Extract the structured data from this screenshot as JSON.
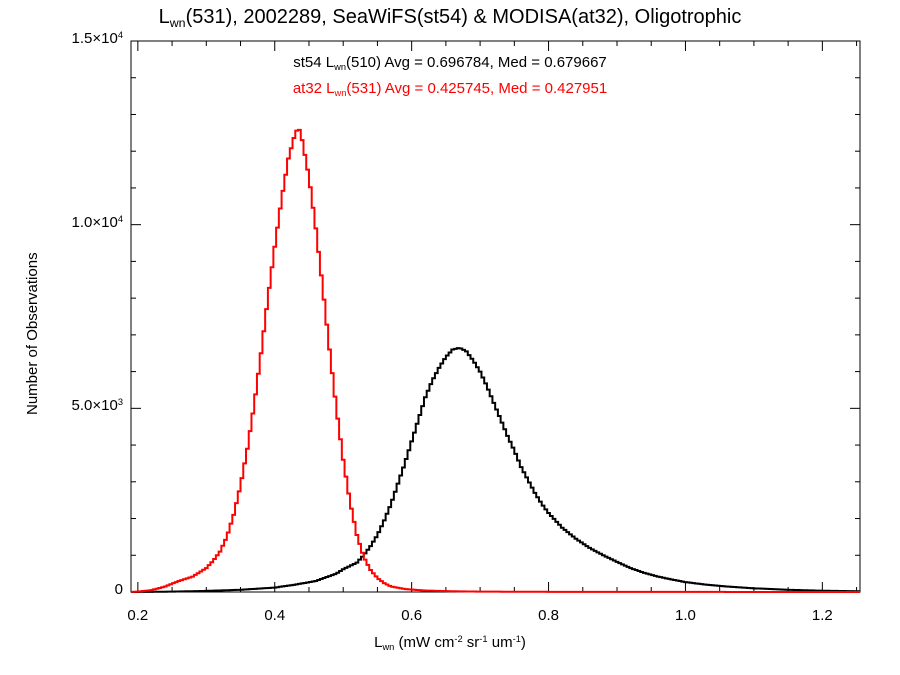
{
  "chart_data": {
    "type": "line",
    "title_parts": {
      "L": "L",
      "wn": "wn",
      "rest": "(531), 2002289, SeaWiFS(st54) & MODISA(at32), Oligotrophic"
    },
    "stats": [
      {
        "series": "st54",
        "prefix": "st54 L",
        "sub": "wn",
        "suffix": "(510) Avg = 0.696784, Med = 0.679667",
        "color": "#000000"
      },
      {
        "series": "at32",
        "prefix": "at32 L",
        "sub": "wn",
        "suffix": "(531) Avg = 0.425745, Med = 0.427951",
        "color": "#ff0000"
      }
    ],
    "xlabel_parts": {
      "L": "L",
      "wn": "wn",
      "a": " (mW cm",
      "e1": "-2",
      "b": " sr",
      "e2": "-1",
      "c": " um",
      "e3": "-1",
      "d": ")"
    },
    "ylabel": "Number of Observations",
    "xlim": [
      0.19,
      1.255
    ],
    "ylim": [
      0,
      15000
    ],
    "x_ticks": [
      0.2,
      0.4,
      0.6,
      0.8,
      1.0,
      1.2
    ],
    "x_tick_labels": [
      "0.2",
      "0.4",
      "0.6",
      "0.8",
      "1.0",
      "1.2"
    ],
    "y_ticks": [
      {
        "value": 0,
        "mantissa": "0",
        "exp": ""
      },
      {
        "value": 5000,
        "mantissa": "5.0×10",
        "exp": "3"
      },
      {
        "value": 10000,
        "mantissa": "1.0×10",
        "exp": "4"
      },
      {
        "value": 15000,
        "mantissa": "1.5×10",
        "exp": "4"
      }
    ],
    "series": [
      {
        "name": "st54",
        "color": "#000000",
        "points": [
          [
            0.19,
            0
          ],
          [
            0.25,
            10
          ],
          [
            0.3,
            30
          ],
          [
            0.35,
            60
          ],
          [
            0.4,
            120
          ],
          [
            0.43,
            200
          ],
          [
            0.46,
            300
          ],
          [
            0.49,
            500
          ],
          [
            0.5,
            620
          ],
          [
            0.52,
            800
          ],
          [
            0.53,
            1000
          ],
          [
            0.54,
            1250
          ],
          [
            0.55,
            1550
          ],
          [
            0.56,
            1950
          ],
          [
            0.57,
            2400
          ],
          [
            0.58,
            2950
          ],
          [
            0.59,
            3500
          ],
          [
            0.6,
            4100
          ],
          [
            0.61,
            4700
          ],
          [
            0.62,
            5300
          ],
          [
            0.63,
            5750
          ],
          [
            0.64,
            6100
          ],
          [
            0.65,
            6400
          ],
          [
            0.66,
            6600
          ],
          [
            0.67,
            6650
          ],
          [
            0.68,
            6550
          ],
          [
            0.69,
            6300
          ],
          [
            0.7,
            6000
          ],
          [
            0.71,
            5600
          ],
          [
            0.72,
            5150
          ],
          [
            0.73,
            4700
          ],
          [
            0.74,
            4250
          ],
          [
            0.75,
            3850
          ],
          [
            0.76,
            3400
          ],
          [
            0.77,
            3050
          ],
          [
            0.78,
            2700
          ],
          [
            0.79,
            2400
          ],
          [
            0.8,
            2150
          ],
          [
            0.82,
            1750
          ],
          [
            0.84,
            1450
          ],
          [
            0.86,
            1200
          ],
          [
            0.88,
            1000
          ],
          [
            0.9,
            820
          ],
          [
            0.92,
            650
          ],
          [
            0.94,
            520
          ],
          [
            0.96,
            420
          ],
          [
            0.98,
            340
          ],
          [
            1.0,
            270
          ],
          [
            1.03,
            200
          ],
          [
            1.06,
            150
          ],
          [
            1.1,
            100
          ],
          [
            1.15,
            60
          ],
          [
            1.2,
            35
          ],
          [
            1.255,
            20
          ]
        ]
      },
      {
        "name": "at32",
        "color": "#ff0000",
        "points": [
          [
            0.19,
            0
          ],
          [
            0.2,
            10
          ],
          [
            0.22,
            50
          ],
          [
            0.24,
            150
          ],
          [
            0.26,
            300
          ],
          [
            0.28,
            420
          ],
          [
            0.3,
            650
          ],
          [
            0.31,
            850
          ],
          [
            0.32,
            1100
          ],
          [
            0.33,
            1500
          ],
          [
            0.34,
            2100
          ],
          [
            0.35,
            2900
          ],
          [
            0.36,
            3900
          ],
          [
            0.37,
            5100
          ],
          [
            0.38,
            6500
          ],
          [
            0.39,
            8000
          ],
          [
            0.4,
            9400
          ],
          [
            0.41,
            10700
          ],
          [
            0.42,
            11800
          ],
          [
            0.43,
            12500
          ],
          [
            0.435,
            12650
          ],
          [
            0.44,
            12300
          ],
          [
            0.45,
            11300
          ],
          [
            0.46,
            9900
          ],
          [
            0.47,
            8300
          ],
          [
            0.48,
            6600
          ],
          [
            0.49,
            5000
          ],
          [
            0.5,
            3600
          ],
          [
            0.51,
            2450
          ],
          [
            0.52,
            1550
          ],
          [
            0.53,
            950
          ],
          [
            0.54,
            600
          ],
          [
            0.55,
            380
          ],
          [
            0.56,
            240
          ],
          [
            0.57,
            150
          ],
          [
            0.59,
            80
          ],
          [
            0.62,
            40
          ],
          [
            0.66,
            20
          ],
          [
            0.7,
            10
          ],
          [
            0.8,
            5
          ],
          [
            1.0,
            2
          ],
          [
            1.255,
            1
          ]
        ]
      }
    ]
  }
}
